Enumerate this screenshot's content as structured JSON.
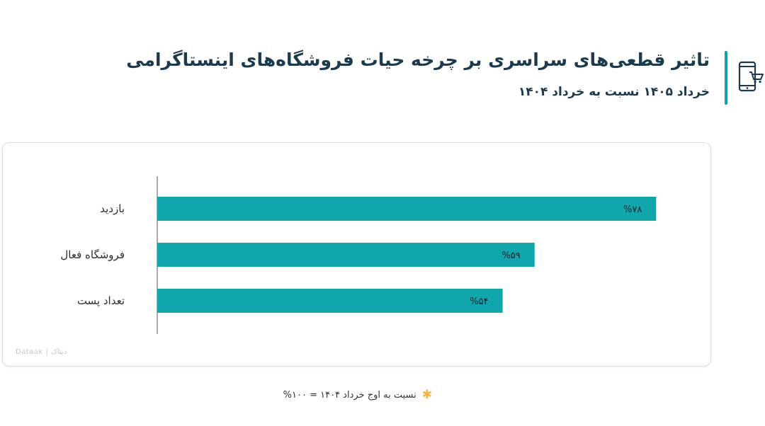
{
  "header": {
    "title": "تاثیر قطعی‌های سراسری بر چرخه حیات فروشگاه‌های اینستاگرامی",
    "subtitle": "خرداد ۱۴۰۵ نسبت به خرداد ۱۴۰۴",
    "icon": "mobile-shop-icon",
    "accent_color": "#0fa3a9"
  },
  "chart_data": {
    "type": "bar",
    "orientation": "horizontal",
    "categories": [
      "بازدید",
      "فروشگاه فعال",
      "تعداد پست"
    ],
    "values": [
      78,
      59,
      54
    ],
    "value_labels": [
      "%۷۸",
      "%۵۹",
      "%۵۴"
    ],
    "xlim": [
      0,
      100
    ],
    "bar_color": "#10a6ab",
    "grid": false,
    "legend": "none"
  },
  "watermark": "Dataak | دیتاک",
  "footnote": {
    "text": "نسبت به اوج خرداد ۱۴۰۴ = ۱۰۰%",
    "icon": "star-icon",
    "icon_color": "#f3b33d"
  }
}
